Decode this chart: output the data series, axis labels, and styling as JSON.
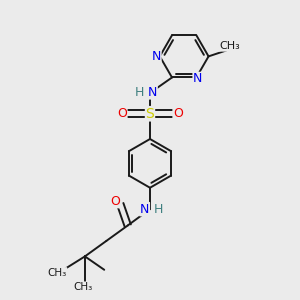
{
  "background_color": "#ebebeb",
  "bond_color": "#1a1a1a",
  "N_color": "#0000ee",
  "O_color": "#ee0000",
  "S_color": "#cccc00",
  "H_color": "#408080",
  "figsize": [
    3.0,
    3.0
  ],
  "dpi": 100,
  "xlim": [
    0,
    1
  ],
  "ylim": [
    0,
    1
  ]
}
